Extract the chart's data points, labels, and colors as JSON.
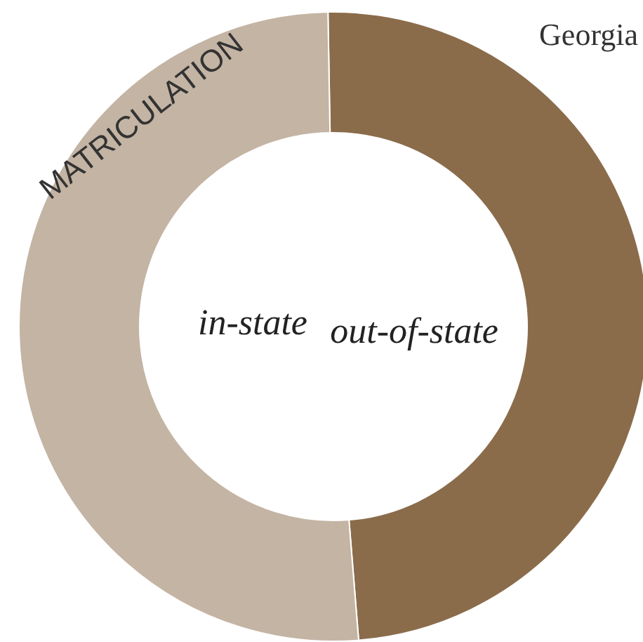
{
  "chart_data": {
    "type": "donut",
    "title": "MATRICULATION",
    "categories": [
      "out-of-state",
      "in-state"
    ],
    "values": [
      49,
      51
    ],
    "colors": [
      "#8a6c4b",
      "#c4b4a4"
    ],
    "annotations": [
      "Georgia"
    ]
  }
}
